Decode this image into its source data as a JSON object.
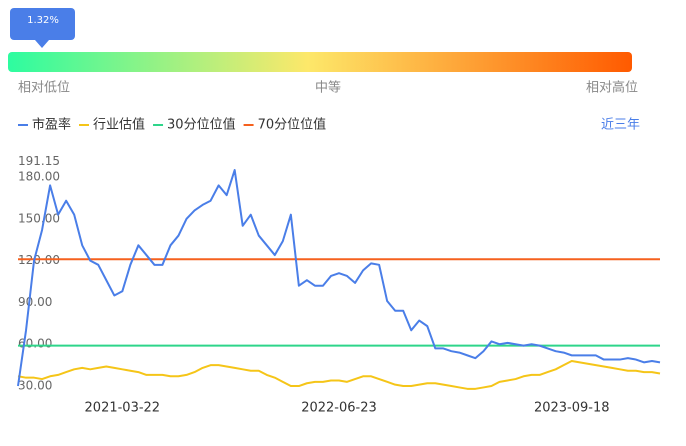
{
  "gauge": {
    "label": "1.32%",
    "low": "相对低位",
    "mid": "中等",
    "high": "相对高位"
  },
  "range_button": "近三年",
  "chart_data": {
    "type": "line",
    "categories": [
      null,
      null,
      null,
      null,
      null,
      null,
      null,
      null,
      null,
      null,
      null,
      null,
      null,
      "2021-03-22",
      null,
      null,
      null,
      null,
      null,
      null,
      null,
      null,
      null,
      null,
      null,
      null,
      null,
      null,
      null,
      null,
      null,
      null,
      null,
      null,
      null,
      null,
      null,
      null,
      null,
      null,
      "2022-06-23",
      null,
      null,
      null,
      null,
      null,
      null,
      null,
      null,
      null,
      null,
      null,
      null,
      null,
      null,
      null,
      null,
      null,
      null,
      null,
      null,
      null,
      null,
      null,
      null,
      null,
      null,
      null,
      null,
      "2023-09-18",
      null,
      null,
      null,
      null,
      null,
      null,
      null,
      null,
      null,
      null,
      null
    ],
    "series": [
      {
        "name": "市盈率",
        "color": "#4a7ee8",
        "values": [
          30,
          70,
          120,
          142,
          174,
          153,
          163,
          153,
          131,
          120,
          117,
          106,
          95,
          98,
          117,
          131,
          124,
          117,
          117,
          131,
          138,
          150,
          156,
          160,
          163,
          174,
          167,
          185,
          145,
          153,
          138,
          131,
          124,
          134,
          153,
          102,
          106,
          102,
          102,
          109,
          111,
          109,
          104,
          113,
          118,
          117,
          91,
          84,
          84,
          70,
          77,
          73,
          57,
          57,
          55,
          54,
          52,
          50,
          55,
          62,
          60,
          61,
          60,
          59,
          60,
          59,
          57,
          55,
          54,
          52,
          52,
          52,
          52,
          49,
          49,
          49,
          50,
          49,
          47,
          48,
          47
        ]
      },
      {
        "name": "行业估值",
        "color": "#f5c518",
        "values": [
          37,
          36,
          36,
          35,
          37,
          38,
          40,
          42,
          43,
          42,
          43,
          44,
          43,
          42,
          41,
          40,
          38,
          38,
          38,
          37,
          37,
          38,
          40,
          43,
          45,
          45,
          44,
          43,
          42,
          41,
          41,
          38,
          36,
          33,
          30,
          30,
          32,
          33,
          33,
          34,
          34,
          33,
          35,
          37,
          37,
          35,
          33,
          31,
          30,
          30,
          31,
          32,
          32,
          31,
          30,
          29,
          28,
          28,
          29,
          30,
          33,
          34,
          35,
          37,
          38,
          38,
          40,
          42,
          45,
          48,
          47,
          46,
          45,
          44,
          43,
          42,
          41,
          41,
          40,
          40,
          39
        ]
      }
    ],
    "reference_lines": [
      {
        "name": "30分位位值",
        "color": "#2ed58a",
        "value": 59
      },
      {
        "name": "70分位位值",
        "color": "#f5611e",
        "value": 121
      }
    ],
    "ylim": [
      25,
      191.15
    ],
    "yticks": [
      {
        "value": 30,
        "label": "30.00"
      },
      {
        "value": 60,
        "label": "60.00"
      },
      {
        "value": 90,
        "label": "90.00"
      },
      {
        "value": 120,
        "label": "120.00"
      },
      {
        "value": 150,
        "label": "150.00"
      },
      {
        "value": 180,
        "label": "180.00"
      },
      191.15
    ]
  }
}
